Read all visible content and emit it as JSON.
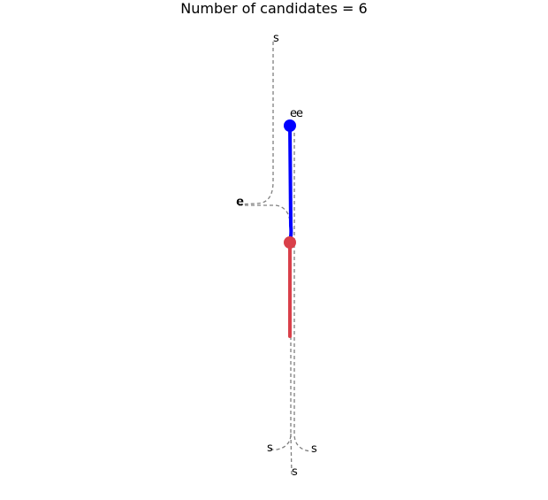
{
  "title": "Number of candidates = 6",
  "colors": {
    "candidate": "#808080",
    "selected": "#0000ff",
    "history": "#d9404a",
    "current_marker": "#0000ff",
    "history_marker": "#d9404a"
  },
  "labels": {
    "start_top": "s",
    "end_top_a": "e",
    "end_top_b": "e",
    "end_left_a": "e",
    "end_left_b": "e",
    "start_bottom_left": "s",
    "start_bottom_right": "s",
    "start_bottom_center": "s"
  }
}
